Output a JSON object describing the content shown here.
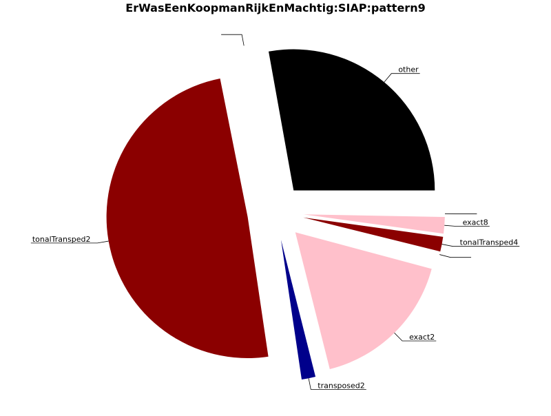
{
  "chart_data": {
    "type": "pie",
    "title": "ErWasEenKoopmanRijkEnMachtig:SIAP:pattern9",
    "slices": [
      {
        "label": "other",
        "value": 28.0,
        "color": "#000000"
      },
      {
        "label": "",
        "value": 0.3,
        "color": "#ffffff"
      },
      {
        "label": "tonalTransped2",
        "value": 49.5,
        "color": "#8b0000"
      },
      {
        "label": "transposed2",
        "value": 1.6,
        "color": "#00008b"
      },
      {
        "label": "exact2",
        "value": 17.0,
        "color": "#ffc0cb"
      },
      {
        "label": "",
        "value": 0.3,
        "color": "#ffffff"
      },
      {
        "label": "tonalTransped4",
        "value": 1.7,
        "color": "#8b0000"
      },
      {
        "label": "exact8",
        "value": 1.9,
        "color": "#ffc0cb"
      },
      {
        "label": "",
        "value": 0.3,
        "color": "#ffffff"
      }
    ]
  }
}
